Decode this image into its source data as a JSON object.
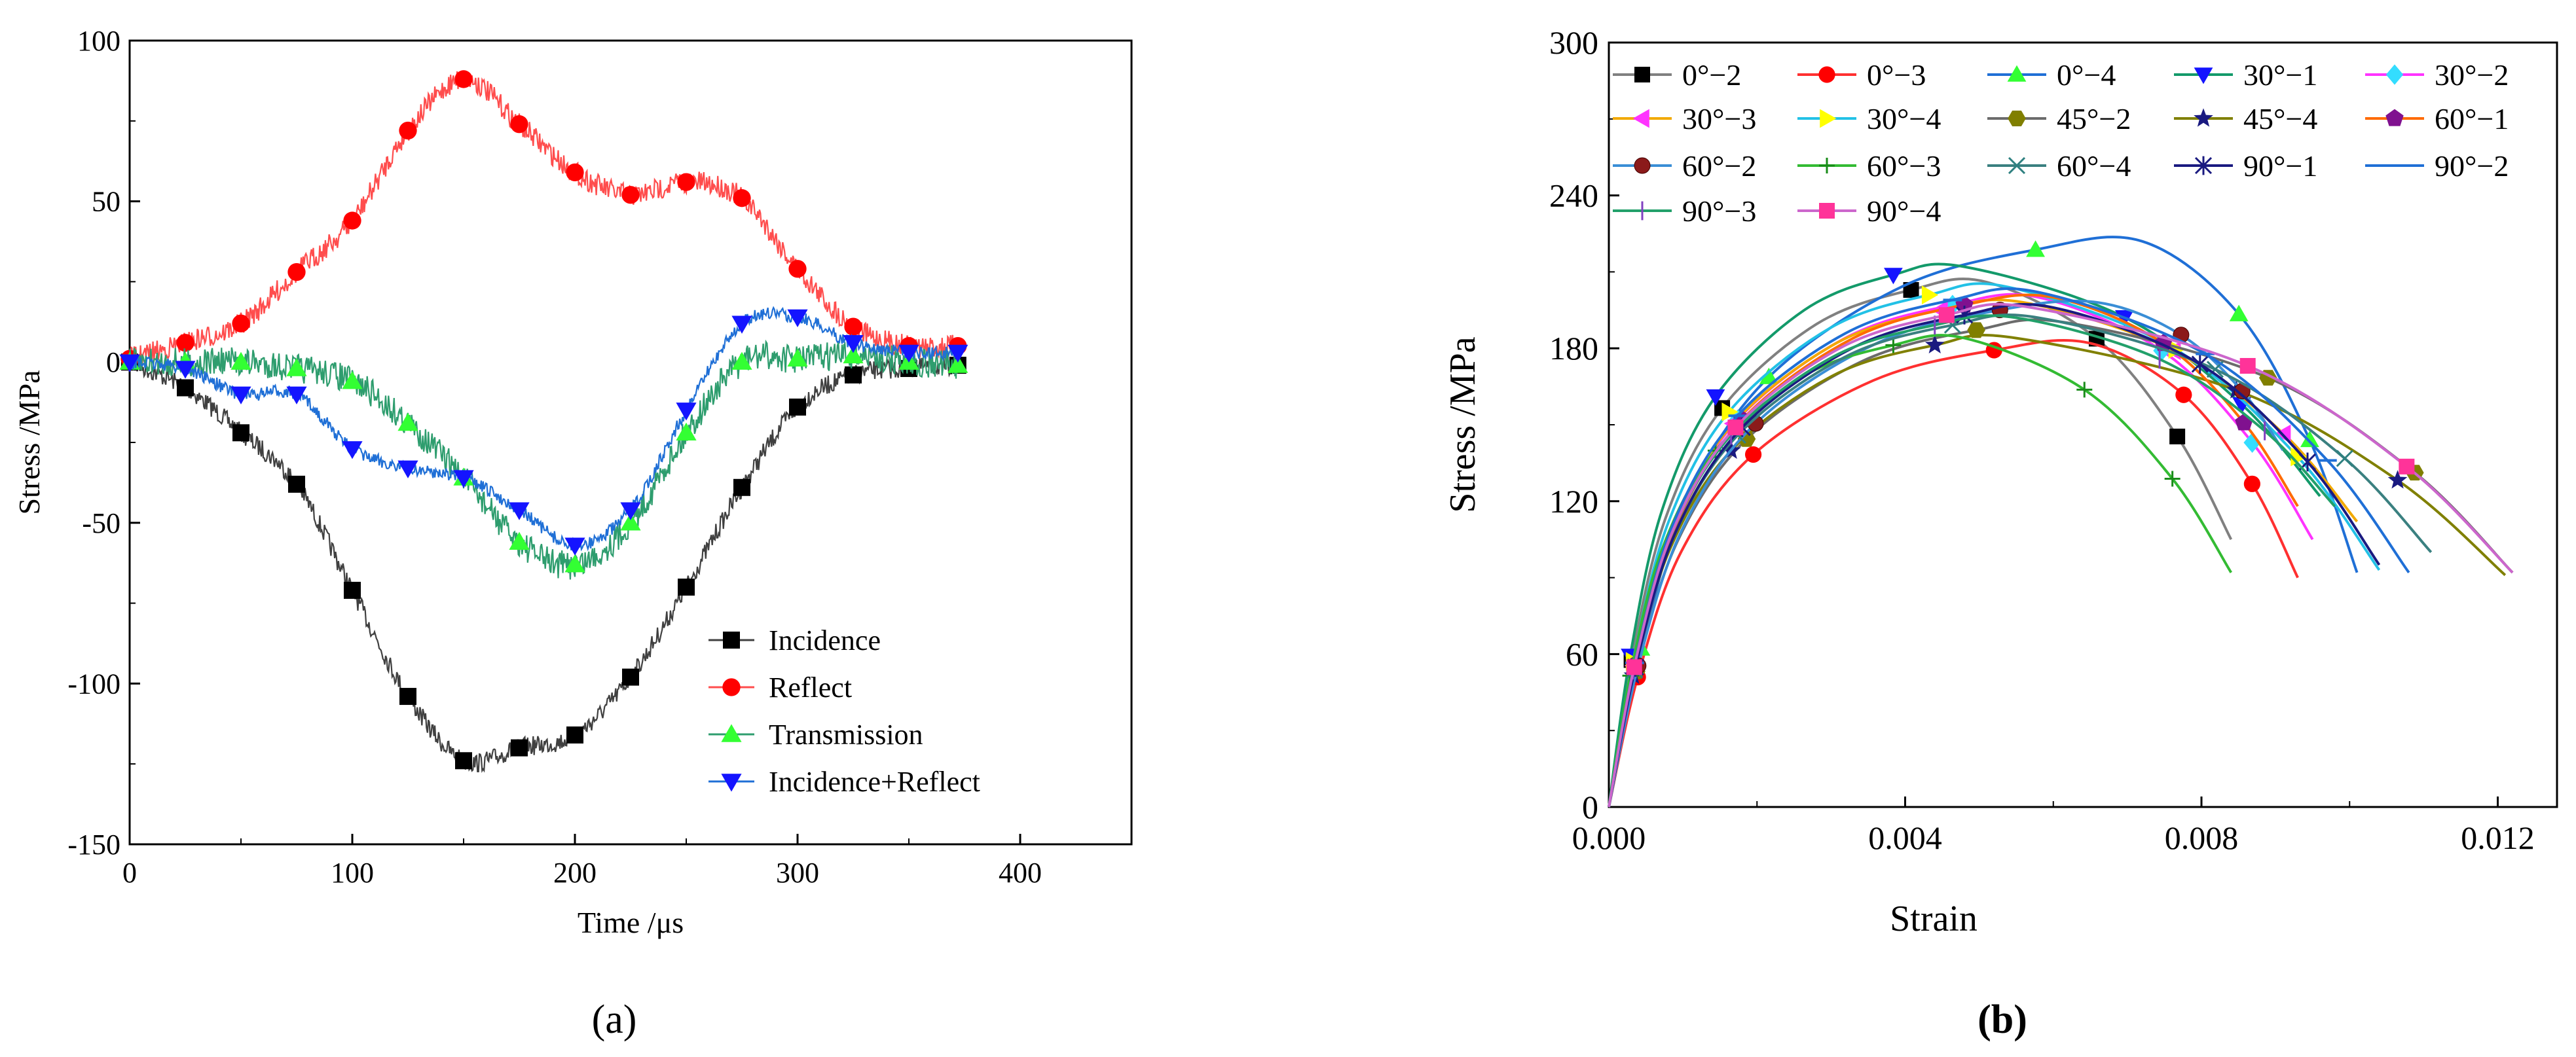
{
  "chart_data": [
    {
      "panel_label": "(a)",
      "type": "line",
      "xlabel": "Time /μs",
      "ylabel": "Stress /MPa",
      "xlim": [
        0,
        450
      ],
      "ylim": [
        -150,
        100
      ],
      "xticks": [
        0,
        100,
        200,
        300,
        400
      ],
      "yticks": [
        -150,
        -100,
        -50,
        0,
        50,
        100
      ],
      "legend_position": "bottom-right",
      "series": [
        {
          "name": "Incidence",
          "color": "#404040",
          "marker": "square",
          "marker_color": "#000000",
          "x": [
            0,
            25,
            50,
            75,
            100,
            125,
            150,
            175,
            200,
            225,
            250,
            275,
            300,
            325,
            350,
            372
          ],
          "y": [
            0,
            -8,
            -22,
            -38,
            -71,
            -104,
            -124,
            -120,
            -116,
            -98,
            -70,
            -39,
            -14,
            -4,
            -2,
            -1
          ]
        },
        {
          "name": "Reflect",
          "color": "#ff4d4d",
          "marker": "circle",
          "marker_color": "#ff0000",
          "x": [
            0,
            25,
            50,
            75,
            100,
            125,
            150,
            175,
            200,
            225,
            250,
            275,
            300,
            325,
            350,
            372
          ],
          "y": [
            1,
            6,
            12,
            28,
            44,
            72,
            88,
            74,
            59,
            52,
            56,
            51,
            29,
            11,
            5,
            5
          ]
        },
        {
          "name": "Transmission",
          "color": "#2e9d6e",
          "marker": "triangle-up",
          "marker_color": "#33ff33",
          "x": [
            0,
            25,
            50,
            75,
            100,
            125,
            150,
            175,
            200,
            225,
            250,
            275,
            300,
            325,
            350,
            372
          ],
          "y": [
            0,
            0,
            0,
            -2,
            -6,
            -19,
            -36,
            -56,
            -63,
            -50,
            -22,
            0,
            1,
            2,
            0,
            -1
          ]
        },
        {
          "name": "Incidence+Reflect",
          "color": "#1f6fd6",
          "marker": "triangle-down",
          "marker_color": "#1414ff",
          "x": [
            0,
            25,
            50,
            75,
            100,
            125,
            150,
            175,
            200,
            225,
            250,
            275,
            300,
            325,
            350,
            372
          ],
          "y": [
            0,
            -2,
            -10,
            -10,
            -27,
            -33,
            -36,
            -46,
            -57,
            -46,
            -15,
            12,
            14,
            6,
            3,
            3
          ]
        }
      ]
    },
    {
      "panel_label": "(b)",
      "type": "line",
      "xlabel": "Strain",
      "ylabel": "Stress /MPa",
      "xlim": [
        0,
        0.0128
      ],
      "ylim": [
        0,
        300
      ],
      "xticks": [
        "0.000",
        "0.004",
        "0.008",
        "0.012"
      ],
      "xtick_values": [
        0,
        0.004,
        0.008,
        0.012
      ],
      "yticks": [
        0,
        60,
        120,
        180,
        240,
        300
      ],
      "legend_position": "top",
      "series": [
        {
          "name": "0°−2",
          "color": "#808080",
          "marker": "square",
          "marker_color": "#000000",
          "peak_strain": 0.0051,
          "peak_stress": 206,
          "end_strain": 0.0084,
          "end_stress": 105
        },
        {
          "name": "0°−3",
          "color": "#ff3030",
          "marker": "circle",
          "marker_color": "#ff0000",
          "peak_strain": 0.0065,
          "peak_stress": 182,
          "end_strain": 0.0093,
          "end_stress": 90
        },
        {
          "name": "0°−4",
          "color": "#1f6fd6",
          "marker": "triangle-up",
          "marker_color": "#33ff33",
          "peak_strain": 0.0072,
          "peak_stress": 222,
          "end_strain": 0.0101,
          "end_stress": 92
        },
        {
          "name": "30°−1",
          "color": "#139a6a",
          "marker": "triangle-down",
          "marker_color": "#1414ff",
          "peak_strain": 0.0048,
          "peak_stress": 212,
          "end_strain": 0.0096,
          "end_stress": 122
        },
        {
          "name": "30°−2",
          "color": "#ff33ff",
          "marker": "diamond",
          "marker_color": "#33ddff",
          "peak_strain": 0.0058,
          "peak_stress": 200,
          "end_strain": 0.0095,
          "end_stress": 105
        },
        {
          "name": "30°−3",
          "color": "#f2a900",
          "marker": "triangle-left",
          "marker_color": "#ff33ff",
          "peak_strain": 0.0056,
          "peak_stress": 198,
          "end_strain": 0.0101,
          "end_stress": 112
        },
        {
          "name": "30°−4",
          "color": "#22c1e6",
          "marker": "triangle-right",
          "marker_color": "#ffff00",
          "peak_strain": 0.0054,
          "peak_stress": 204,
          "end_strain": 0.0104,
          "end_stress": 93
        },
        {
          "name": "45°−2",
          "color": "#6b6b6b",
          "marker": "hexagon",
          "marker_color": "#807f00",
          "peak_strain": 0.0062,
          "peak_stress": 190,
          "end_strain": 0.0122,
          "end_stress": 92
        },
        {
          "name": "45°−4",
          "color": "#808000",
          "marker": "star",
          "marker_color": "#1a1a80",
          "peak_strain": 0.0055,
          "peak_stress": 184,
          "end_strain": 0.0121,
          "end_stress": 91
        },
        {
          "name": "60°−1",
          "color": "#ff6a00",
          "marker": "pentagon",
          "marker_color": "#80118f",
          "peak_strain": 0.006,
          "peak_stress": 200,
          "end_strain": 0.0093,
          "end_stress": 118
        },
        {
          "name": "60°−2",
          "color": "#3a8ed6",
          "marker": "sphere",
          "marker_color": "#8b1a1a",
          "peak_strain": 0.0066,
          "peak_stress": 198,
          "end_strain": 0.0091,
          "end_stress": 140
        },
        {
          "name": "60°−3",
          "color": "#33bb33",
          "marker": "plus",
          "marker_color": "#1a8c1a",
          "peak_strain": 0.0048,
          "peak_stress": 184,
          "end_strain": 0.0084,
          "end_stress": 92
        },
        {
          "name": "60°−4",
          "color": "#3a8080",
          "marker": "x",
          "marker_color": "#2e8080",
          "peak_strain": 0.0058,
          "peak_stress": 192,
          "end_strain": 0.0111,
          "end_stress": 100
        },
        {
          "name": "90°−1",
          "color": "#1a1a80",
          "marker": "asterisk",
          "marker_color": "#1a1a80",
          "peak_strain": 0.006,
          "peak_stress": 196,
          "end_strain": 0.0104,
          "end_stress": 95
        },
        {
          "name": "90°−2",
          "color": "#1f6fd6",
          "marker": "line",
          "marker_color": "#1f6fd6",
          "peak_strain": 0.0058,
          "peak_stress": 202,
          "end_strain": 0.0108,
          "end_stress": 92
        },
        {
          "name": "90°−3",
          "color": "#22a06a",
          "marker": "bar",
          "marker_color": "#8040c0",
          "peak_strain": 0.0055,
          "peak_stress": 192,
          "end_strain": 0.0098,
          "end_stress": 118
        },
        {
          "name": "90°−4",
          "color": "#cc66cc",
          "marker": "square",
          "marker_color": "#ff3399",
          "peak_strain": 0.0057,
          "peak_stress": 196,
          "end_strain": 0.0122,
          "end_stress": 92
        }
      ]
    }
  ]
}
